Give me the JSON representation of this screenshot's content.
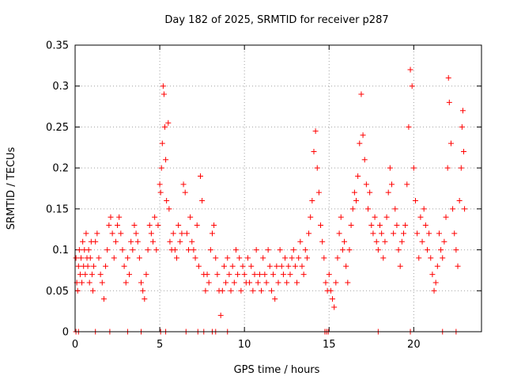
{
  "chart_data": {
    "type": "scatter",
    "title": "Day 182 of 2025, SRMTID for receiver p287",
    "xlabel": "GPS time / hours",
    "ylabel": "SRMTID / TECUs",
    "xlim": [
      0,
      24
    ],
    "ylim": [
      0,
      0.35
    ],
    "xticks": [
      0,
      5,
      10,
      15,
      20
    ],
    "yticks": [
      0,
      0.05,
      0.1,
      0.15,
      0.2,
      0.25,
      0.3,
      0.35
    ],
    "xtick_labels": [
      "0",
      "5",
      "10",
      "15",
      "20"
    ],
    "ytick_labels": [
      "0",
      "0.05",
      "0.1",
      "0.15",
      "0.2",
      "0.25",
      "0.3",
      "0.35"
    ],
    "grid": true,
    "marker": "plus",
    "color": "#ff0000",
    "series": [
      {
        "name": "SRMTID",
        "points": [
          [
            0.05,
            0.09
          ],
          [
            0.1,
            0.06
          ],
          [
            0.15,
            0.05
          ],
          [
            0.2,
            0.08
          ],
          [
            0.25,
            0.1
          ],
          [
            0.3,
            0.07
          ],
          [
            0.35,
            0.09
          ],
          [
            0.4,
            0.06
          ],
          [
            0.45,
            0.11
          ],
          [
            0.5,
            0.08
          ],
          [
            0.55,
            0.1
          ],
          [
            0.6,
            0.07
          ],
          [
            0.65,
            0.12
          ],
          [
            0.7,
            0.09
          ],
          [
            0.75,
            0.08
          ],
          [
            0.8,
            0.1
          ],
          [
            0.85,
            0.06
          ],
          [
            0.9,
            0.09
          ],
          [
            0.95,
            0.11
          ],
          [
            1.0,
            0.07
          ],
          [
            1.05,
            0.05
          ],
          [
            1.1,
            0.08
          ],
          [
            1.2,
            0.11
          ],
          [
            1.3,
            0.12
          ],
          [
            1.4,
            0.09
          ],
          [
            1.5,
            0.07
          ],
          [
            1.6,
            0.06
          ],
          [
            1.7,
            0.04
          ],
          [
            1.8,
            0.08
          ],
          [
            1.9,
            0.1
          ],
          [
            2.0,
            0.13
          ],
          [
            2.1,
            0.14
          ],
          [
            2.2,
            0.12
          ],
          [
            2.3,
            0.09
          ],
          [
            2.4,
            0.11
          ],
          [
            2.5,
            0.13
          ],
          [
            2.6,
            0.14
          ],
          [
            2.7,
            0.12
          ],
          [
            2.8,
            0.1
          ],
          [
            2.9,
            0.08
          ],
          [
            3.0,
            0.06
          ],
          [
            3.1,
            0.09
          ],
          [
            3.2,
            0.07
          ],
          [
            3.3,
            0.11
          ],
          [
            3.4,
            0.1
          ],
          [
            3.5,
            0.13
          ],
          [
            3.6,
            0.12
          ],
          [
            3.7,
            0.11
          ],
          [
            3.8,
            0.09
          ],
          [
            3.9,
            0.06
          ],
          [
            4.0,
            0.05
          ],
          [
            4.1,
            0.04
          ],
          [
            4.2,
            0.07
          ],
          [
            4.3,
            0.1
          ],
          [
            4.4,
            0.13
          ],
          [
            4.5,
            0.12
          ],
          [
            4.6,
            0.11
          ],
          [
            4.7,
            0.14
          ],
          [
            4.8,
            0.1
          ],
          [
            4.9,
            0.13
          ],
          [
            5.0,
            0.18
          ],
          [
            5.05,
            0.17
          ],
          [
            5.1,
            0.2
          ],
          [
            5.15,
            0.23
          ],
          [
            5.2,
            0.3
          ],
          [
            5.25,
            0.29
          ],
          [
            5.3,
            0.25
          ],
          [
            5.35,
            0.21
          ],
          [
            5.4,
            0.16
          ],
          [
            5.5,
            0.255
          ],
          [
            5.55,
            0.15
          ],
          [
            5.6,
            0.11
          ],
          [
            5.7,
            0.1
          ],
          [
            5.8,
            0.12
          ],
          [
            5.9,
            0.1
          ],
          [
            6.0,
            0.09
          ],
          [
            6.1,
            0.13
          ],
          [
            6.2,
            0.11
          ],
          [
            6.3,
            0.12
          ],
          [
            6.4,
            0.18
          ],
          [
            6.5,
            0.17
          ],
          [
            6.6,
            0.12
          ],
          [
            6.7,
            0.1
          ],
          [
            6.8,
            0.14
          ],
          [
            6.9,
            0.11
          ],
          [
            7.0,
            0.1
          ],
          [
            7.1,
            0.09
          ],
          [
            7.2,
            0.13
          ],
          [
            7.3,
            0.08
          ],
          [
            7.4,
            0.19
          ],
          [
            7.5,
            0.16
          ],
          [
            7.6,
            0.07
          ],
          [
            7.7,
            0.05
          ],
          [
            7.8,
            0.07
          ],
          [
            7.9,
            0.06
          ],
          [
            8.0,
            0.1
          ],
          [
            8.1,
            0.12
          ],
          [
            8.2,
            0.13
          ],
          [
            8.3,
            0.09
          ],
          [
            8.4,
            0.07
          ],
          [
            8.5,
            0.05
          ],
          [
            8.6,
            0.02
          ],
          [
            8.7,
            0.05
          ],
          [
            8.8,
            0.08
          ],
          [
            8.9,
            0.06
          ],
          [
            9.0,
            0.09
          ],
          [
            9.1,
            0.07
          ],
          [
            9.2,
            0.05
          ],
          [
            9.3,
            0.08
          ],
          [
            9.4,
            0.06
          ],
          [
            9.5,
            0.1
          ],
          [
            9.6,
            0.07
          ],
          [
            9.7,
            0.09
          ],
          [
            9.8,
            0.05
          ],
          [
            9.9,
            0.08
          ],
          [
            10.0,
            0.07
          ],
          [
            10.1,
            0.06
          ],
          [
            10.2,
            0.09
          ],
          [
            10.3,
            0.06
          ],
          [
            10.4,
            0.08
          ],
          [
            10.5,
            0.05
          ],
          [
            10.6,
            0.07
          ],
          [
            10.7,
            0.1
          ],
          [
            10.8,
            0.06
          ],
          [
            10.9,
            0.07
          ],
          [
            11.0,
            0.05
          ],
          [
            11.1,
            0.09
          ],
          [
            11.2,
            0.07
          ],
          [
            11.3,
            0.06
          ],
          [
            11.4,
            0.1
          ],
          [
            11.5,
            0.08
          ],
          [
            11.6,
            0.05
          ],
          [
            11.7,
            0.07
          ],
          [
            11.8,
            0.04
          ],
          [
            11.9,
            0.08
          ],
          [
            12.0,
            0.06
          ],
          [
            12.1,
            0.1
          ],
          [
            12.2,
            0.08
          ],
          [
            12.3,
            0.07
          ],
          [
            12.4,
            0.09
          ],
          [
            12.5,
            0.06
          ],
          [
            12.6,
            0.08
          ],
          [
            12.7,
            0.07
          ],
          [
            12.8,
            0.09
          ],
          [
            12.9,
            0.1
          ],
          [
            13.0,
            0.08
          ],
          [
            13.1,
            0.06
          ],
          [
            13.2,
            0.09
          ],
          [
            13.3,
            0.11
          ],
          [
            13.4,
            0.08
          ],
          [
            13.5,
            0.07
          ],
          [
            13.6,
            0.1
          ],
          [
            13.7,
            0.09
          ],
          [
            13.8,
            0.12
          ],
          [
            13.9,
            0.14
          ],
          [
            14.0,
            0.16
          ],
          [
            14.1,
            0.22
          ],
          [
            14.2,
            0.245
          ],
          [
            14.3,
            0.2
          ],
          [
            14.4,
            0.17
          ],
          [
            14.5,
            0.13
          ],
          [
            14.6,
            0.11
          ],
          [
            14.7,
            0.09
          ],
          [
            14.8,
            0.06
          ],
          [
            14.9,
            0.05
          ],
          [
            15.0,
            0.07
          ],
          [
            15.1,
            0.05
          ],
          [
            15.2,
            0.04
          ],
          [
            15.3,
            0.03
          ],
          [
            15.4,
            0.06
          ],
          [
            15.5,
            0.09
          ],
          [
            15.6,
            0.12
          ],
          [
            15.7,
            0.14
          ],
          [
            15.8,
            0.1
          ],
          [
            15.9,
            0.11
          ],
          [
            16.0,
            0.08
          ],
          [
            16.1,
            0.06
          ],
          [
            16.2,
            0.1
          ],
          [
            16.3,
            0.13
          ],
          [
            16.4,
            0.15
          ],
          [
            16.5,
            0.17
          ],
          [
            16.6,
            0.16
          ],
          [
            16.7,
            0.19
          ],
          [
            16.8,
            0.23
          ],
          [
            16.9,
            0.29
          ],
          [
            17.0,
            0.24
          ],
          [
            17.1,
            0.21
          ],
          [
            17.2,
            0.18
          ],
          [
            17.3,
            0.15
          ],
          [
            17.4,
            0.17
          ],
          [
            17.5,
            0.13
          ],
          [
            17.6,
            0.12
          ],
          [
            17.7,
            0.14
          ],
          [
            17.8,
            0.11
          ],
          [
            17.9,
            0.1
          ],
          [
            18.0,
            0.13
          ],
          [
            18.1,
            0.12
          ],
          [
            18.2,
            0.09
          ],
          [
            18.3,
            0.11
          ],
          [
            18.4,
            0.14
          ],
          [
            18.5,
            0.17
          ],
          [
            18.6,
            0.2
          ],
          [
            18.7,
            0.18
          ],
          [
            18.8,
            0.12
          ],
          [
            18.9,
            0.15
          ],
          [
            19.0,
            0.13
          ],
          [
            19.1,
            0.1
          ],
          [
            19.2,
            0.08
          ],
          [
            19.3,
            0.11
          ],
          [
            19.4,
            0.12
          ],
          [
            19.5,
            0.13
          ],
          [
            19.6,
            0.18
          ],
          [
            19.7,
            0.25
          ],
          [
            19.8,
            0.32
          ],
          [
            19.9,
            0.3
          ],
          [
            20.0,
            0.2
          ],
          [
            20.1,
            0.16
          ],
          [
            20.2,
            0.12
          ],
          [
            20.3,
            0.09
          ],
          [
            20.4,
            0.14
          ],
          [
            20.5,
            0.11
          ],
          [
            20.6,
            0.15
          ],
          [
            20.7,
            0.13
          ],
          [
            20.8,
            0.1
          ],
          [
            20.9,
            0.12
          ],
          [
            21.0,
            0.09
          ],
          [
            21.1,
            0.07
          ],
          [
            21.2,
            0.05
          ],
          [
            21.3,
            0.06
          ],
          [
            21.4,
            0.08
          ],
          [
            21.5,
            0.12
          ],
          [
            21.6,
            0.1
          ],
          [
            21.7,
            0.09
          ],
          [
            21.8,
            0.11
          ],
          [
            21.9,
            0.14
          ],
          [
            22.0,
            0.2
          ],
          [
            22.05,
            0.31
          ],
          [
            22.1,
            0.28
          ],
          [
            22.2,
            0.23
          ],
          [
            22.3,
            0.15
          ],
          [
            22.4,
            0.12
          ],
          [
            22.5,
            0.1
          ],
          [
            22.6,
            0.08
          ],
          [
            22.7,
            0.16
          ],
          [
            22.8,
            0.2
          ],
          [
            22.85,
            0.25
          ],
          [
            22.9,
            0.27
          ],
          [
            22.95,
            0.22
          ],
          [
            23.0,
            0.15
          ],
          [
            0.05,
            0
          ],
          [
            0.2,
            0
          ],
          [
            1.2,
            0
          ],
          [
            2.05,
            0
          ],
          [
            3.1,
            0
          ],
          [
            3.9,
            0
          ],
          [
            5.05,
            0
          ],
          [
            5.35,
            0
          ],
          [
            6.55,
            0
          ],
          [
            7.25,
            0
          ],
          [
            7.6,
            0
          ],
          [
            8.1,
            0
          ],
          [
            8.3,
            0
          ],
          [
            9.0,
            0
          ],
          [
            14.75,
            0
          ],
          [
            14.85,
            0
          ],
          [
            14.95,
            0
          ],
          [
            17.9,
            0
          ],
          [
            19.8,
            0
          ],
          [
            21.7,
            0
          ],
          [
            22.5,
            0
          ]
        ]
      }
    ]
  }
}
